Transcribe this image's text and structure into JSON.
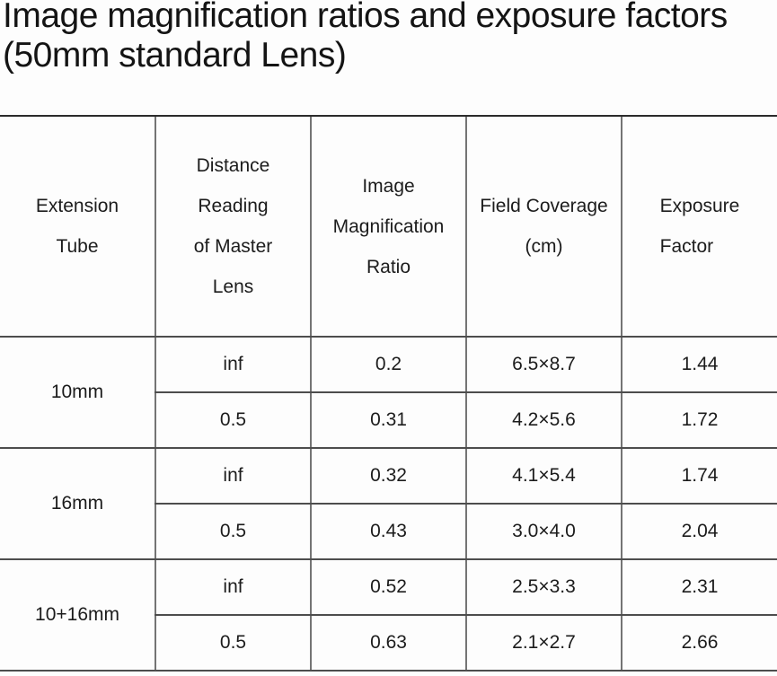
{
  "title": {
    "line1": "Image magnification ratios and exposure factors",
    "line2": "(50mm standard Lens)"
  },
  "table": {
    "headers": [
      {
        "label": "Extension Tube",
        "lines": [
          "Extension",
          "Tube"
        ]
      },
      {
        "label": "Distance Reading of Master Lens",
        "lines": [
          "Distance",
          "Reading",
          "of Master",
          "Lens"
        ]
      },
      {
        "label": "Image Magnification Ratio",
        "lines": [
          "Image",
          "Magnification",
          "Ratio"
        ]
      },
      {
        "label": "Field Coverage (cm)",
        "lines": [
          "Field Coverage",
          "(cm)"
        ]
      },
      {
        "label": "Exposure Factor",
        "lines": [
          "Exposure",
          "Factor"
        ]
      }
    ],
    "groups": [
      {
        "tube": "10mm",
        "rows": [
          {
            "distance": "inf",
            "ratio": "0.2",
            "coverage": "6.5×8.7",
            "exposure": "1.44"
          },
          {
            "distance": "0.5",
            "ratio": "0.31",
            "coverage": "4.2×5.6",
            "exposure": "1.72"
          }
        ]
      },
      {
        "tube": "16mm",
        "rows": [
          {
            "distance": "inf",
            "ratio": "0.32",
            "coverage": "4.1×5.4",
            "exposure": "1.74"
          },
          {
            "distance": "0.5",
            "ratio": "0.43",
            "coverage": "3.0×4.0",
            "exposure": "2.04"
          }
        ]
      },
      {
        "tube": "10+16mm",
        "rows": [
          {
            "distance": "inf",
            "ratio": "0.52",
            "coverage": "2.5×3.3",
            "exposure": "2.31"
          },
          {
            "distance": "0.5",
            "ratio": "0.63",
            "coverage": "2.1×2.7",
            "exposure": "2.66"
          }
        ]
      }
    ]
  },
  "colors": {
    "background": "#fdfdfd",
    "text": "#1c1c1c",
    "line_top": "#2b2b2b",
    "line_horizontal": "#4d4d4d",
    "line_vertical": "#747474"
  }
}
